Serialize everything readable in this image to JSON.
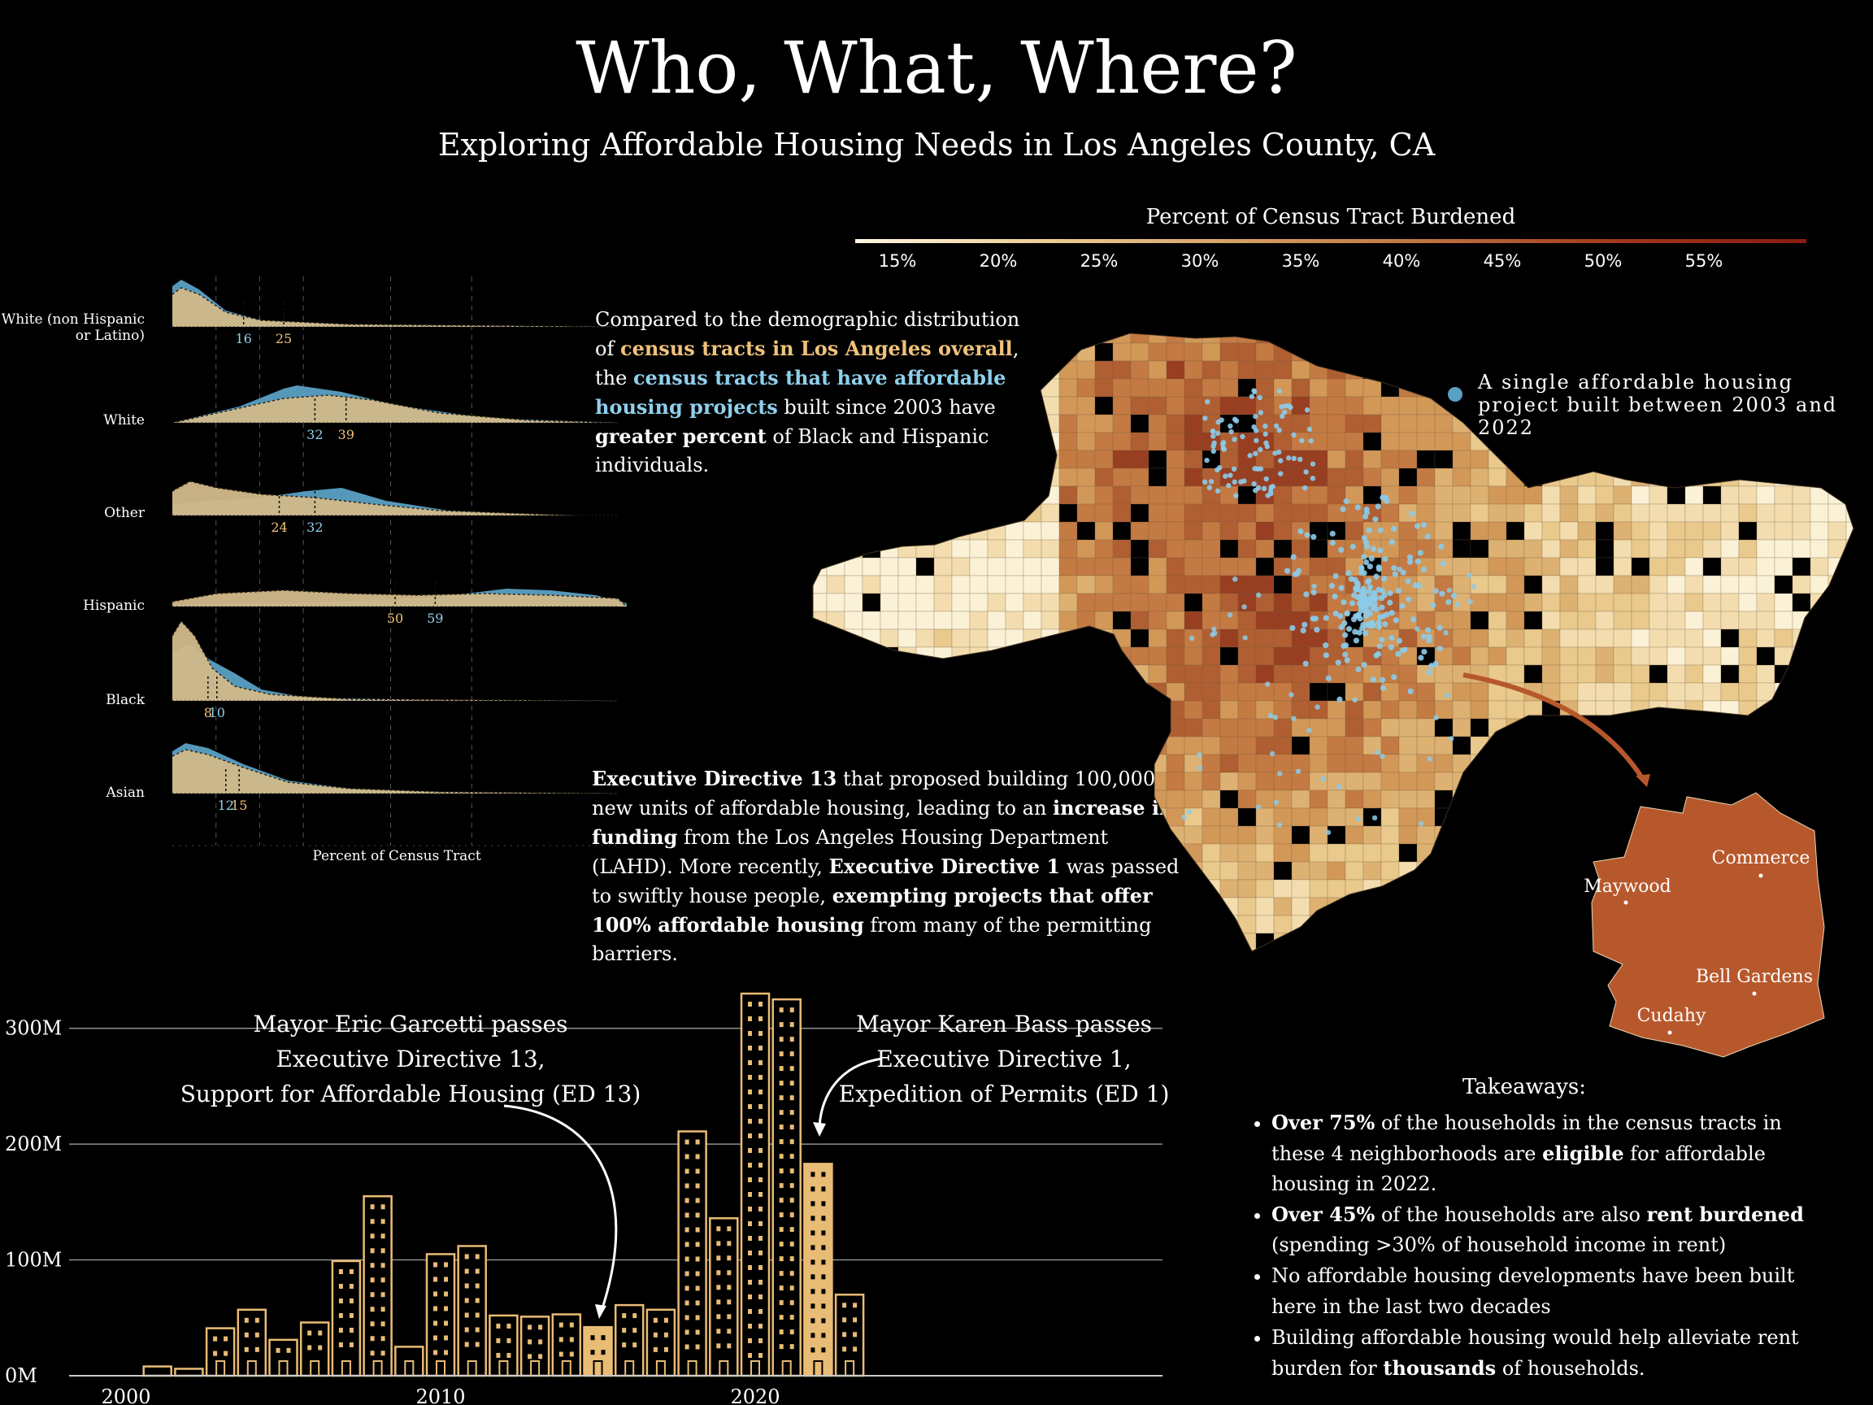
{
  "header": {
    "title": "Who, What, Where?",
    "subtitle": "Exploring Affordable Housing Needs in Los Angeles County, CA"
  },
  "colors": {
    "background": "#000000",
    "tan": "#c9a96e",
    "tan_text": "#f0c27a",
    "blue": "#5aa0c4",
    "blue_text": "#8fd0ec",
    "burnt": "#b7582c",
    "bar_fill": "#e9bc75"
  },
  "legend": {
    "title": "Percent of Census Tract Burdened",
    "ticks": [
      "15%",
      "20%",
      "25%",
      "30%",
      "35%",
      "40%",
      "45%",
      "50%",
      "55%"
    ],
    "range": [
      10,
      60
    ],
    "colors": [
      "#fdf5df",
      "#eccd95",
      "#d6a064",
      "#c0733f",
      "#a13a1c",
      "#8a1b10"
    ]
  },
  "ridgeline": {
    "xlabel": "Percent of Census Tract",
    "groups": [
      {
        "label": "White (non Hispanic or Latino)",
        "value_blue": 16,
        "value_tan": 25
      },
      {
        "label": "White",
        "value_blue": 32,
        "value_tan": 39
      },
      {
        "label": "Other",
        "value_tan": 24,
        "value_blue": 32
      },
      {
        "label": "Hispanic",
        "value_tan": 50,
        "value_blue": 59
      },
      {
        "label": "Black",
        "value_tan": 8,
        "value_blue": 10
      },
      {
        "label": "Asian",
        "value_blue": 12,
        "value_tan": 15
      }
    ]
  },
  "text": {
    "demographics": {
      "p1": "Compared to the demographic distribution of ",
      "h1": "census tracts in Los Angeles overall",
      "p2": ", the ",
      "h2": "census tracts that have affordable housing projects",
      "p3": " built since 2003 have ",
      "b1": "greater percent",
      "p4": " of Black and Hispanic individuals."
    },
    "executive": {
      "b1": "Executive Directive 13",
      "p1": " that proposed building 100,000 new units of affordable housing, leading to an ",
      "b2": "increase in funding",
      "p2": " from the Los Angeles Housing Department (LAHD). More recently, ",
      "b3": "Executive Directive 1",
      "p3": " was passed to swiftly house people, ",
      "b4": "exempting projects that offer 100% affordable housing",
      "p4": " from many of the permitting barriers."
    }
  },
  "map": {
    "dot_legend": "A single affordable housing project built between 2003 and 2022",
    "neighborhoods": [
      "Maywood",
      "Commerce",
      "Bell Gardens",
      "Cudahy"
    ]
  },
  "annotations": {
    "garcetti": [
      "Mayor Eric Garcetti passes",
      "Executive Directive 13,",
      "Support for Affordable Housing (ED 13)"
    ],
    "bass": [
      "Mayor Karen Bass passes",
      "Executive Directive 1,",
      "Expedition of Permits (ED 1)"
    ]
  },
  "takeaways": {
    "title": "Takeaways:",
    "items": [
      {
        "b1": "Over 75%",
        "t1": " of the households in the census tracts in these 4 neighborhoods are ",
        "b2": "eligible",
        "t2": " for affordable housing in 2022."
      },
      {
        "b1": "Over 45%",
        "t1": " of the households are also ",
        "b2": "rent burdened",
        "t2": " (spending >30% of household income in rent)"
      },
      {
        "b1": "",
        "t1": "No affordable housing developments have been built here in the last two decades",
        "b2": "",
        "t2": ""
      },
      {
        "b1": "",
        "t1": "Building affordable housing would help alleviate rent burden for ",
        "b2": "thousands",
        "t2": " of households."
      }
    ]
  },
  "chart_data": {
    "type": "bar",
    "title": "",
    "xlabel": "",
    "ylabel": "",
    "x": [
      2001,
      2002,
      2003,
      2004,
      2005,
      2006,
      2007,
      2008,
      2009,
      2010,
      2011,
      2012,
      2013,
      2014,
      2015,
      2016,
      2017,
      2018,
      2019,
      2020,
      2021,
      2022,
      2023
    ],
    "values": [
      8,
      6,
      41,
      57,
      31,
      46,
      99,
      155,
      25,
      105,
      112,
      52,
      51,
      53,
      42,
      61,
      57,
      211,
      136,
      330,
      325,
      183,
      70
    ],
    "highlight": [
      2015,
      2022
    ],
    "ylim": [
      0,
      330
    ],
    "yticks": [
      0,
      100,
      200,
      300
    ],
    "ytick_labels": [
      "0M",
      "100M",
      "200M",
      "300M"
    ],
    "xticks": [
      2000,
      2010,
      2020
    ],
    "xtick_labels": [
      "2000",
      "2010",
      "2020"
    ],
    "grid": true
  }
}
